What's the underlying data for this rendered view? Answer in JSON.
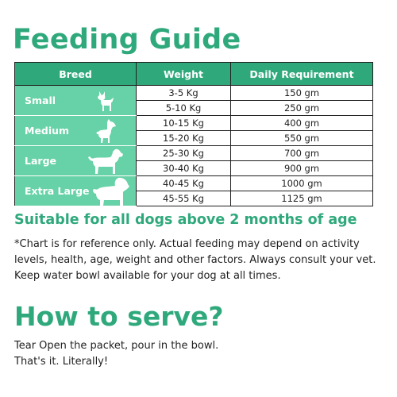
{
  "title": "Feeding Guide",
  "table": {
    "headers": [
      "Breed",
      "Weight",
      "Daily Requirement"
    ],
    "groups": [
      {
        "breed": "Small",
        "icon": "small-dog-icon",
        "rows": [
          {
            "weight": "3-5 Kg",
            "requirement": "150 gm"
          },
          {
            "weight": "5-10 Kg",
            "requirement": "250 gm"
          }
        ]
      },
      {
        "breed": "Medium",
        "icon": "medium-dog-icon",
        "rows": [
          {
            "weight": "10-15 Kg",
            "requirement": "400 gm"
          },
          {
            "weight": "15-20 Kg",
            "requirement": "550 gm"
          }
        ]
      },
      {
        "breed": "Large",
        "icon": "large-dog-icon",
        "rows": [
          {
            "weight": "25-30 Kg",
            "requirement": "700 gm"
          },
          {
            "weight": "30-40 Kg",
            "requirement": "900 gm"
          }
        ]
      },
      {
        "breed": "Extra Large",
        "icon": "extra-large-dog-icon",
        "rows": [
          {
            "weight": "40-45 Kg",
            "requirement": "1000 gm"
          },
          {
            "weight": "45-55 Kg",
            "requirement": "1125 gm"
          }
        ]
      }
    ]
  },
  "tagline": "Suitable for all dogs above 2 months of age",
  "note": [
    "*Chart is for reference only. Actual feeding may depend on activity",
    "levels, health, age, weight and other factors. Always consult your vet.",
    "Keep water bowl available for your dog at all times."
  ],
  "serve_heading": "How to serve?",
  "serve_text": [
    "Tear Open the packet, pour in the bowl.",
    "That's it. Literally!"
  ],
  "colors": {
    "accent": "#2fa97c",
    "breed_cell": "#67d2a7"
  }
}
